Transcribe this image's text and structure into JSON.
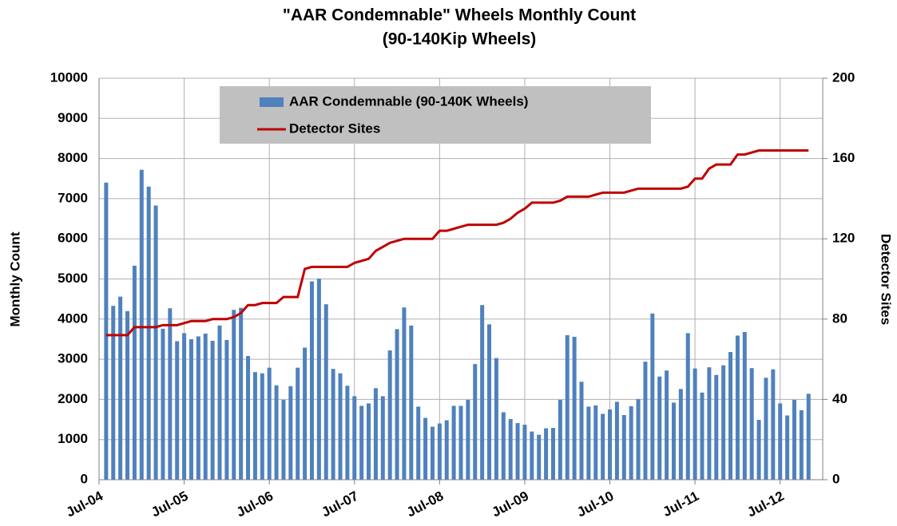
{
  "chart_data": {
    "type": "bar-line",
    "title": "\"AAR Condemnable\" Wheels Monthly Count",
    "subtitle": "(90-140Kip Wheels)",
    "y_label": "Monthly Count",
    "y2_label": "Detector Sites",
    "categories": [
      "Jul-04",
      null,
      null,
      null,
      null,
      null,
      null,
      null,
      null,
      null,
      null,
      null,
      "Jul-05",
      null,
      null,
      null,
      null,
      null,
      null,
      null,
      null,
      null,
      null,
      null,
      "Jul-06",
      null,
      null,
      null,
      null,
      null,
      null,
      null,
      null,
      null,
      null,
      null,
      "Jul-07",
      null,
      null,
      null,
      null,
      null,
      null,
      null,
      null,
      null,
      null,
      null,
      "Jul-08",
      null,
      null,
      null,
      null,
      null,
      null,
      null,
      null,
      null,
      null,
      null,
      "Jul-09",
      null,
      null,
      null,
      null,
      null,
      null,
      null,
      null,
      null,
      null,
      null,
      "Jul-10",
      null,
      null,
      null,
      null,
      null,
      null,
      null,
      null,
      null,
      null,
      null,
      "Jul-11",
      null,
      null,
      null,
      null,
      null,
      null,
      null,
      null,
      null,
      null,
      null,
      "Jul-12",
      null,
      null,
      null,
      null
    ],
    "series": [
      {
        "name": "AAR Condemnable (90-140K Wheels)",
        "type": "bar",
        "color": "#4f81bd",
        "values": [
          null,
          7400,
          4330,
          4560,
          4200,
          5330,
          7720,
          7300,
          6830,
          3760,
          4270,
          3450,
          3650,
          3500,
          3570,
          3640,
          3460,
          3840,
          3480,
          4230,
          4280,
          3080,
          2680,
          2650,
          2790,
          2350,
          1990,
          2330,
          2790,
          3290,
          4940,
          5010,
          4370,
          2760,
          2650,
          2340,
          2080,
          1840,
          1900,
          2280,
          2080,
          3220,
          3750,
          4290,
          3840,
          1820,
          1540,
          1320,
          1400,
          1480,
          1840,
          1840,
          1990,
          2880,
          4350,
          3870,
          3030,
          1680,
          1510,
          1410,
          1370,
          1200,
          1120,
          1280,
          1290,
          1990,
          3600,
          3560,
          2440,
          1820,
          1850,
          1640,
          1750,
          1940,
          1610,
          1830,
          2010,
          2940,
          4140,
          2570,
          2720,
          1920,
          2260,
          3650,
          2770,
          2170,
          2800,
          2610,
          2850,
          3180,
          3590,
          3680,
          2780,
          1490,
          2540,
          2750,
          1900,
          1600,
          1990,
          1730,
          2140
        ]
      },
      {
        "name": "Detector Sites",
        "type": "line",
        "axis": "y2",
        "color": "#c00000",
        "values": [
          null,
          72,
          72,
          72,
          72,
          76,
          76,
          76,
          76,
          77,
          77,
          77,
          78,
          79,
          79,
          79,
          80,
          80,
          80,
          81,
          83,
          87,
          87,
          88,
          88,
          88,
          91,
          91,
          91,
          105,
          106,
          106,
          106,
          106,
          106,
          106,
          108,
          109,
          110,
          114,
          116,
          118,
          119,
          120,
          120,
          120,
          120,
          120,
          124,
          124,
          125,
          126,
          127,
          127,
          127,
          127,
          127,
          128,
          130,
          133,
          135,
          138,
          138,
          138,
          138,
          139,
          141,
          141,
          141,
          141,
          142,
          143,
          143,
          143,
          143,
          144,
          145,
          145,
          145,
          145,
          145,
          145,
          145,
          146,
          150,
          150,
          155,
          157,
          157,
          157,
          162,
          162,
          163,
          164,
          164,
          164,
          164,
          164,
          164,
          164,
          164
        ]
      }
    ],
    "ylim": [
      0,
      10000
    ],
    "yticks": [
      0,
      1000,
      2000,
      3000,
      4000,
      5000,
      6000,
      7000,
      8000,
      9000,
      10000
    ],
    "y2lim": [
      0,
      200
    ],
    "y2ticks": [
      0,
      40,
      80,
      120,
      160,
      200
    ],
    "grid": true,
    "legend": "top"
  }
}
